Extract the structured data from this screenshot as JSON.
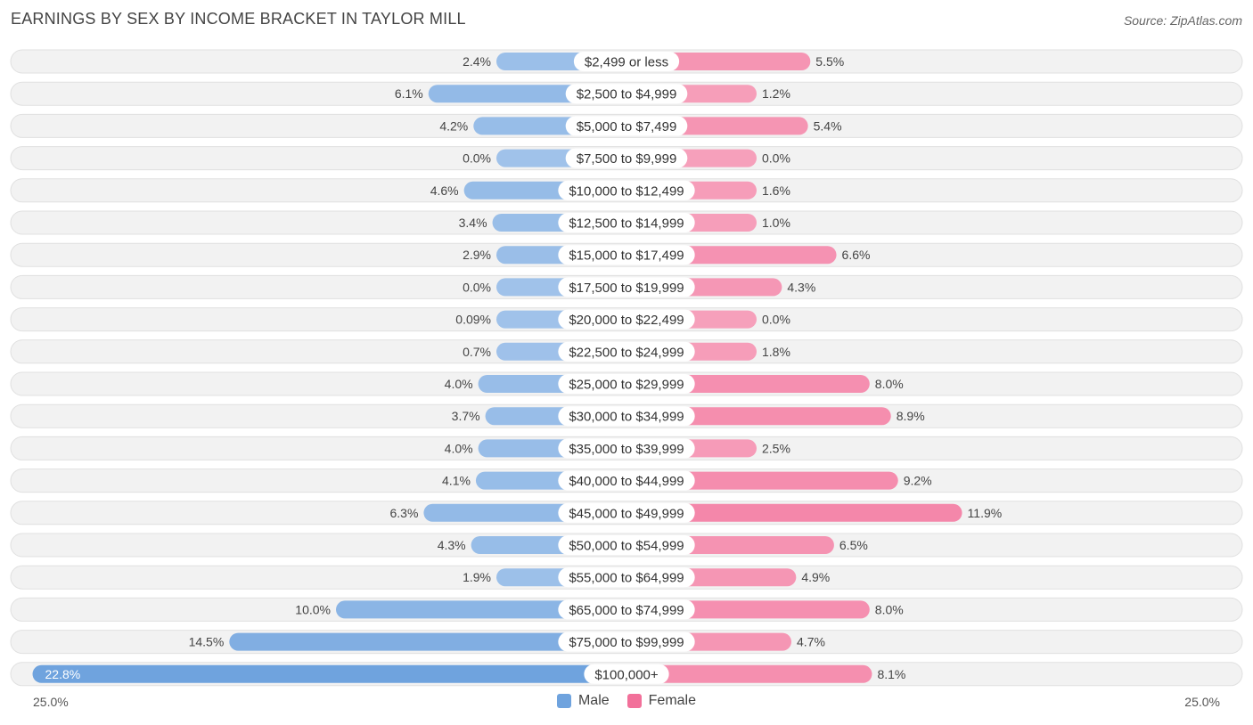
{
  "header": {
    "title": "EARNINGS BY SEX BY INCOME BRACKET IN TAYLOR MILL",
    "source": "Source: ZipAtlas.com"
  },
  "colors": {
    "male": "#6fa3de",
    "male_light": "#a9c8ec",
    "female": "#f2709a",
    "female_light": "#f7a9c1",
    "row_bg": "#f2f2f2"
  },
  "chart_data": {
    "type": "bar",
    "orientation": "horizontal-diverging",
    "title": "EARNINGS BY SEX BY INCOME BRACKET IN TAYLOR MILL",
    "categories": [
      "$2,499 or less",
      "$2,500 to $4,999",
      "$5,000 to $7,499",
      "$7,500 to $9,999",
      "$10,000 to $12,499",
      "$12,500 to $14,999",
      "$15,000 to $17,499",
      "$17,500 to $19,999",
      "$20,000 to $22,499",
      "$22,500 to $24,999",
      "$25,000 to $29,999",
      "$30,000 to $34,999",
      "$35,000 to $39,999",
      "$40,000 to $44,999",
      "$45,000 to $49,999",
      "$50,000 to $54,999",
      "$55,000 to $64,999",
      "$65,000 to $74,999",
      "$75,000 to $99,999",
      "$100,000+"
    ],
    "series": [
      {
        "name": "Male",
        "values": [
          2.4,
          6.1,
          4.2,
          0.0,
          4.6,
          3.4,
          2.9,
          0.0,
          0.09,
          0.7,
          4.0,
          3.7,
          4.0,
          4.1,
          6.3,
          4.3,
          1.9,
          10.0,
          14.5,
          22.8
        ],
        "labels": [
          "2.4%",
          "6.1%",
          "4.2%",
          "0.0%",
          "4.6%",
          "3.4%",
          "2.9%",
          "0.0%",
          "0.09%",
          "0.7%",
          "4.0%",
          "3.7%",
          "4.0%",
          "4.1%",
          "6.3%",
          "4.3%",
          "1.9%",
          "10.0%",
          "14.5%",
          "22.8%"
        ]
      },
      {
        "name": "Female",
        "values": [
          5.5,
          1.2,
          5.4,
          0.0,
          1.6,
          1.0,
          6.6,
          4.3,
          0.0,
          1.8,
          8.0,
          8.9,
          2.5,
          9.2,
          11.9,
          6.5,
          4.9,
          8.0,
          4.7,
          8.1
        ],
        "labels": [
          "5.5%",
          "1.2%",
          "5.4%",
          "0.0%",
          "1.6%",
          "1.0%",
          "6.6%",
          "4.3%",
          "0.0%",
          "1.8%",
          "8.0%",
          "8.9%",
          "2.5%",
          "9.2%",
          "11.9%",
          "6.5%",
          "4.9%",
          "8.0%",
          "4.7%",
          "8.1%"
        ]
      }
    ],
    "xlim": [
      -25,
      25
    ],
    "axis_labels": {
      "left": "25.0%",
      "right": "25.0%"
    },
    "legend": [
      "Male",
      "Female"
    ],
    "legend_position": "bottom-center"
  }
}
